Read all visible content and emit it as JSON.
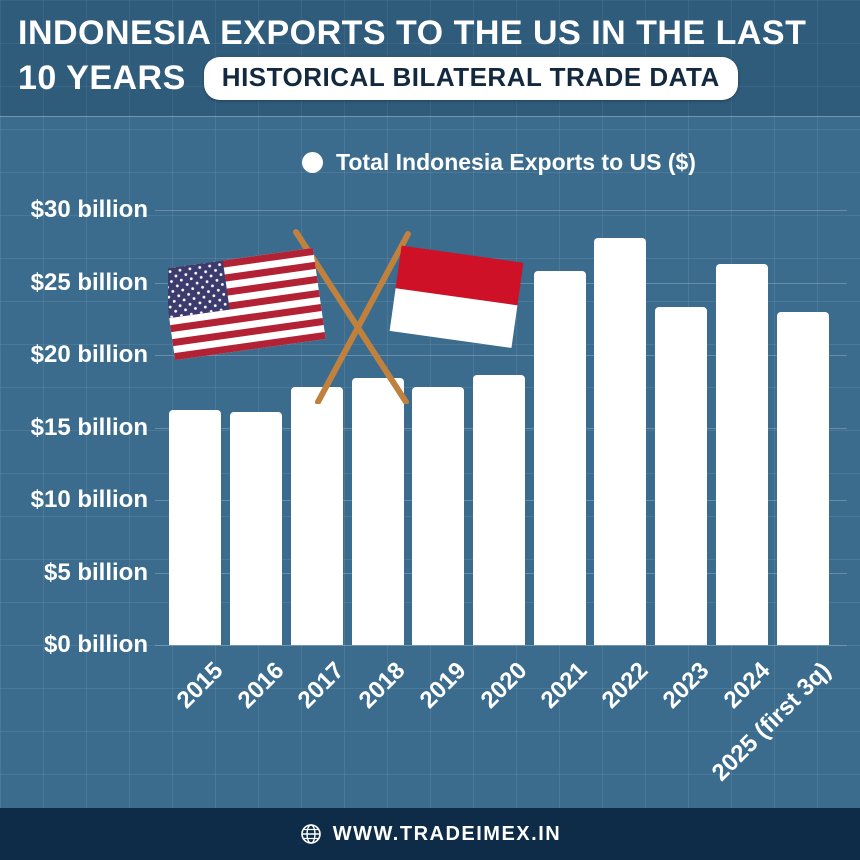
{
  "header": {
    "title_line1": "INDONESIA EXPORTS TO THE US IN THE LAST",
    "title_line2": "10 YEARS",
    "badge": "HISTORICAL BILATERAL TRADE DATA"
  },
  "chart_data": {
    "type": "bar",
    "title": "Indonesia Exports to the US in the last 10 years",
    "subtitle": "Historical Bilateral Trade Data",
    "categories": [
      "2015",
      "2016",
      "2017",
      "2018",
      "2019",
      "2020",
      "2021",
      "2022",
      "2023",
      "2024",
      "2025 (first 3q)"
    ],
    "values": [
      16.2,
      16.1,
      17.8,
      18.4,
      17.8,
      18.6,
      25.8,
      28.1,
      23.3,
      26.3,
      23.0
    ],
    "unit": "billion USD",
    "ylim": [
      0,
      30
    ],
    "ytick_step": 5,
    "ytick_labels": [
      "$0 billion",
      "$5 billion",
      "$10 billion",
      "$15 billion",
      "$20 billion",
      "$25 billion",
      "$30 billion"
    ],
    "legend": [
      "Total Indonesia Exports to US ($)"
    ],
    "legend_position": "top-center",
    "grid": "on",
    "bar_color": "#ffffff"
  },
  "footer": {
    "website": "WWW.TRADEIMEX.IN"
  },
  "colors": {
    "background": "#3b6c8d",
    "bar": "#ffffff",
    "footer": "#0e2c47",
    "badge_text": "#12293f",
    "pole": "#c0813f",
    "us_red": "#B22234",
    "us_blue": "#3C3B6E",
    "id_red": "#CE1126",
    "text": "#ffffff"
  }
}
